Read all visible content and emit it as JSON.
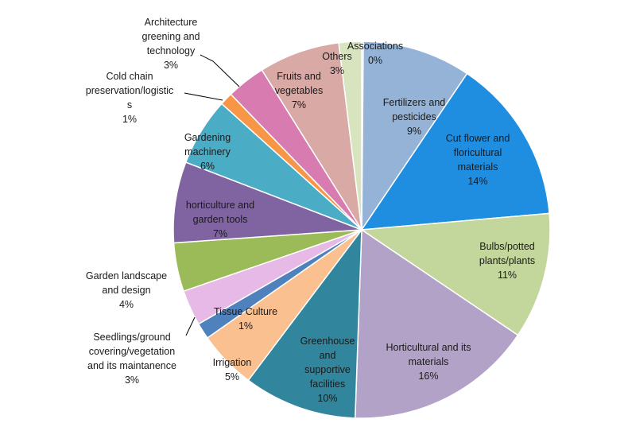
{
  "chart_data": {
    "type": "pie",
    "title": "",
    "slices": [
      {
        "label": "Associations",
        "pct_label": "0%",
        "value": 0,
        "color": "#95b3d7"
      },
      {
        "label": "Fertilizers and pesticides",
        "pct_label": "9%",
        "value": 9,
        "color": "#95b3d7"
      },
      {
        "label": "Cut flower and floricultural materials",
        "pct_label": "14%",
        "value": 14,
        "color": "#1f8ee0"
      },
      {
        "label": "Bulbs/potted plants/plants",
        "pct_label": "11%",
        "value": 11,
        "color": "#c3d69b"
      },
      {
        "label": "Horticultural  and its materials",
        "pct_label": "16%",
        "value": 16,
        "color": "#b3a2c7"
      },
      {
        "label": "Greenhouse and supportive facilities",
        "pct_label": "10%",
        "value": 10,
        "color": "#31859c"
      },
      {
        "label": "Irrigation",
        "pct_label": "5%",
        "value": 5,
        "color": "#fac090"
      },
      {
        "label": "Tissue Culture",
        "pct_label": "1%",
        "value": 1,
        "color": "#4f81bd"
      },
      {
        "label": "Seedlings/ground covering/vegetation and its maintanence",
        "pct_label": "3%",
        "value": 3,
        "color": "#e6b9e6"
      },
      {
        "label": "Garden landscape and design",
        "pct_label": "4%",
        "value": 4,
        "color": "#9bbb59"
      },
      {
        "label": "horticulture and garden tools",
        "pct_label": "7%",
        "value": 7,
        "color": "#8064a2"
      },
      {
        "label": "Gardening machinery",
        "pct_label": "6%",
        "value": 6,
        "color": "#4bacc6"
      },
      {
        "label": "Cold chain preservation/logistics",
        "pct_label": "1%",
        "value": 1,
        "color": "#f79646"
      },
      {
        "label": "Architecture greening and technology",
        "pct_label": "3%",
        "value": 3,
        "color": "#d77bb0"
      },
      {
        "label": "Fruits and vegetables",
        "pct_label": "7%",
        "value": 7,
        "color": "#d9a9a6"
      },
      {
        "label": "Others",
        "pct_label": "3%",
        "value": 3,
        "color": "#d7e4bd"
      }
    ]
  }
}
